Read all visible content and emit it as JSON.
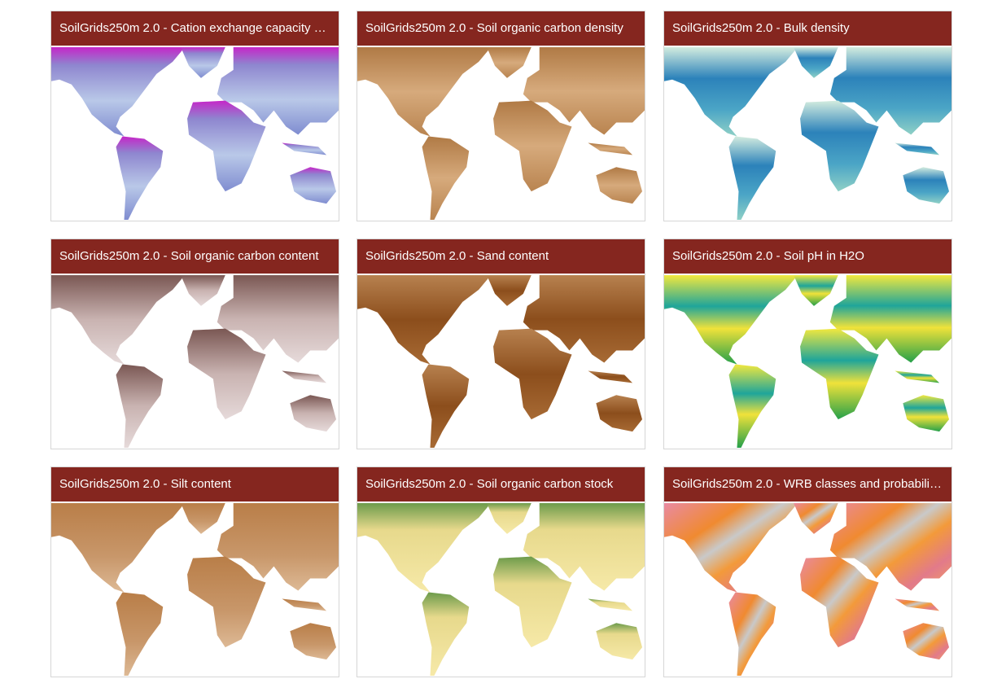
{
  "cards": [
    {
      "title": "SoilGrids250m 2.0 - Cation exchange capacity …"
    },
    {
      "title": "SoilGrids250m 2.0 - Soil organic carbon density"
    },
    {
      "title": "SoilGrids250m 2.0 - Bulk density"
    },
    {
      "title": "SoilGrids250m 2.0 - Soil organic carbon content"
    },
    {
      "title": "SoilGrids250m 2.0 - Sand content"
    },
    {
      "title": "SoilGrids250m 2.0 - Soil pH in H2O"
    },
    {
      "title": "SoilGrids250m 2.0 - Silt content"
    },
    {
      "title": "SoilGrids250m 2.0 - Soil organic carbon stock"
    },
    {
      "title": "SoilGrids250m 2.0 - WRB classes and probabili…"
    }
  ]
}
